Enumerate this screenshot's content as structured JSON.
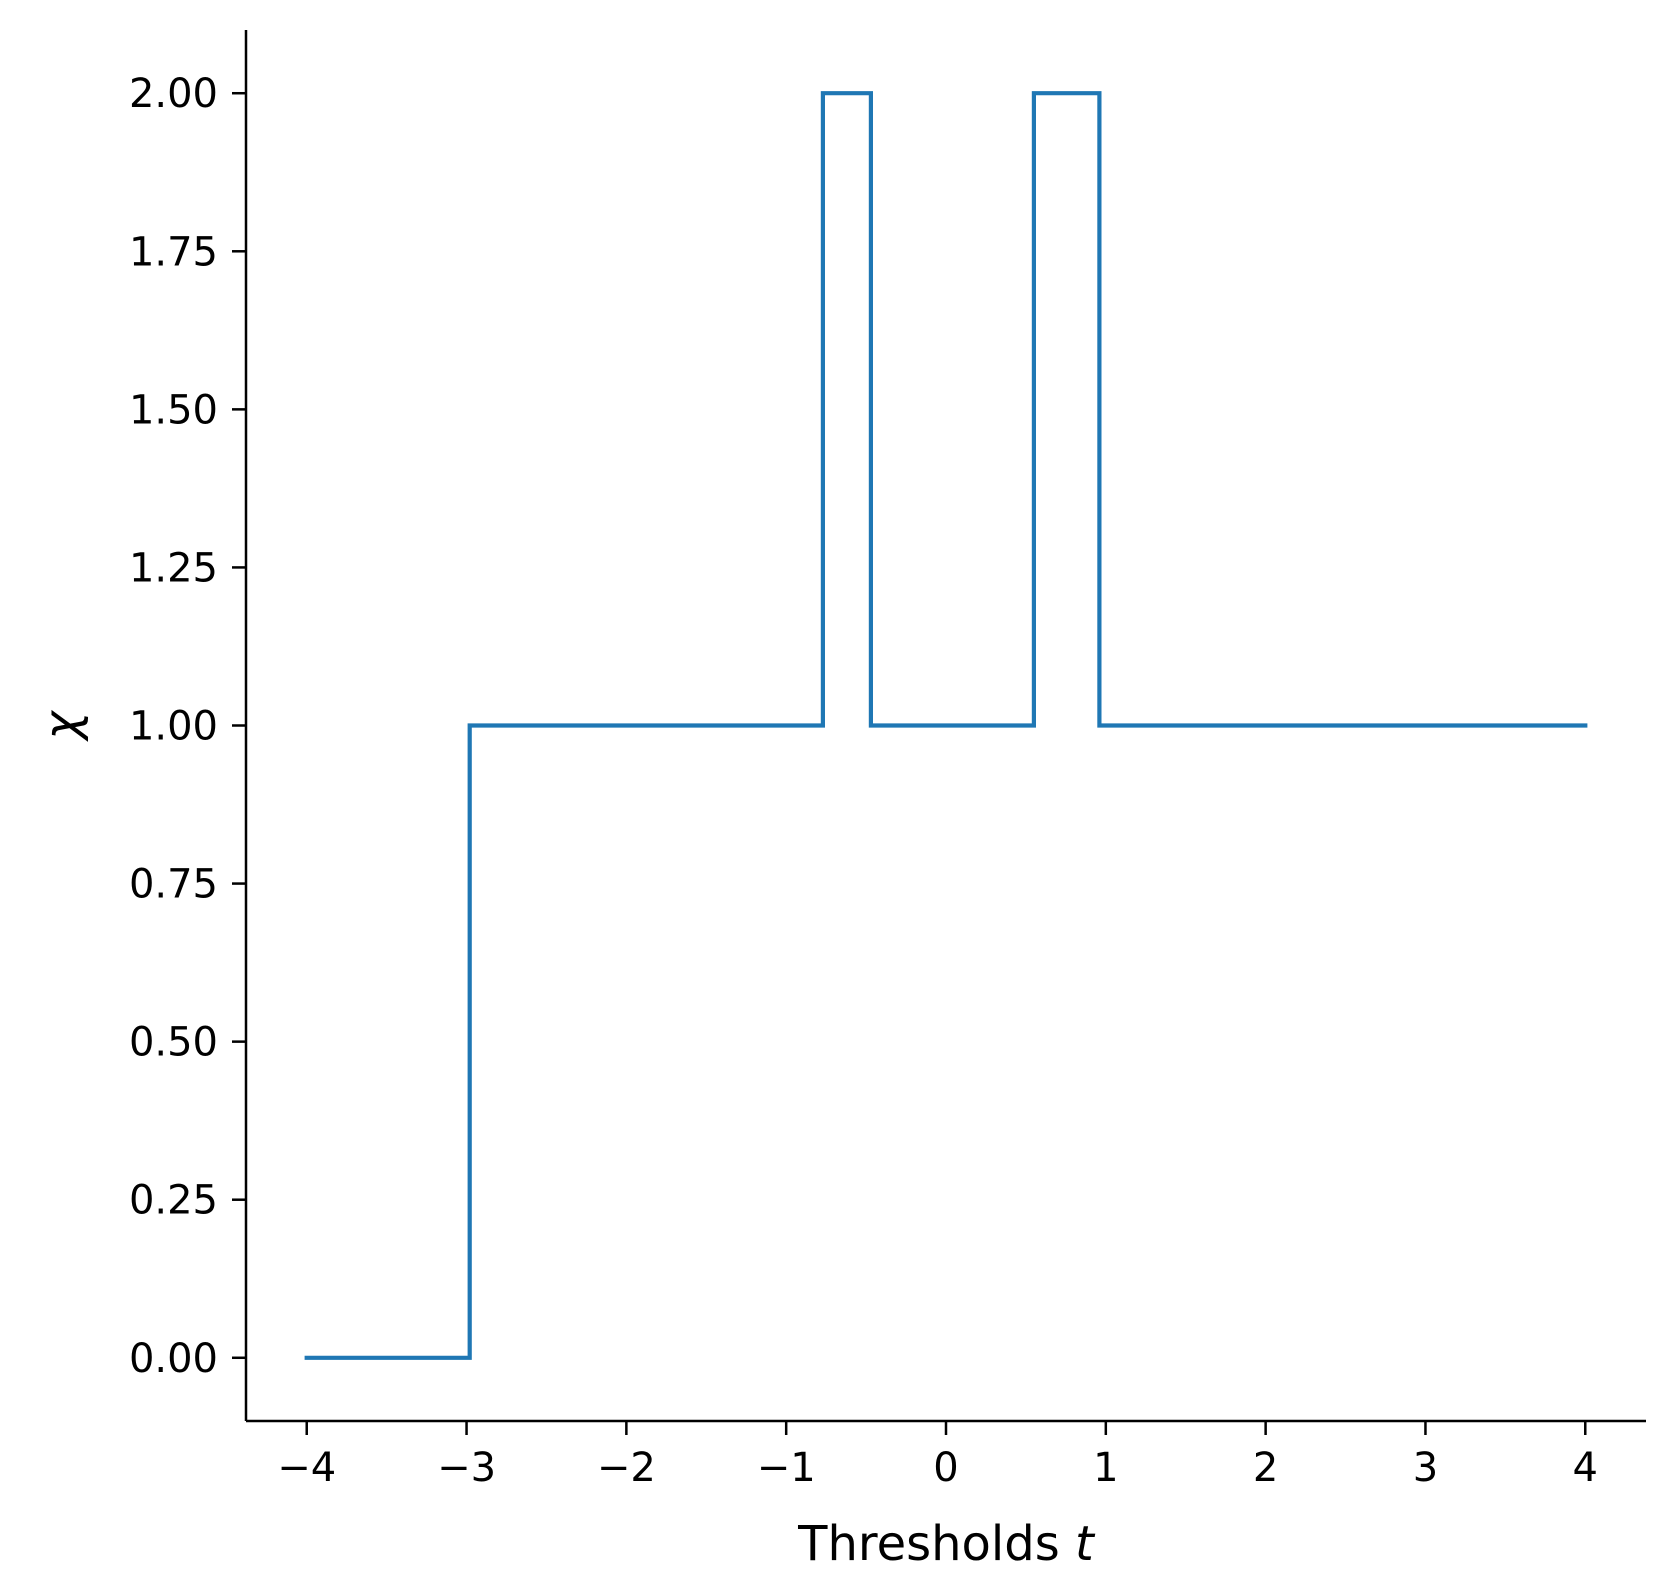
{
  "chart_data": {
    "type": "line",
    "step": true,
    "xlabel": "Thresholds",
    "xlabel_var": "t",
    "ylabel": "χ",
    "xlim": [
      -4.38,
      4.38
    ],
    "ylim": [
      -0.1,
      2.1
    ],
    "xticks": [
      -4,
      -3,
      -2,
      -1,
      0,
      1,
      2,
      3,
      4
    ],
    "xtick_labels": [
      "−4",
      "−3",
      "−2",
      "−1",
      "0",
      "1",
      "2",
      "3",
      "4"
    ],
    "yticks": [
      0,
      0.25,
      0.5,
      0.75,
      1.0,
      1.25,
      1.5,
      1.75,
      2.0
    ],
    "ytick_labels": [
      "0.00",
      "0.25",
      "0.50",
      "0.75",
      "1.00",
      "1.25",
      "1.50",
      "1.75",
      "2.00"
    ],
    "grid": false,
    "spines": [
      "left",
      "bottom"
    ],
    "series": [
      {
        "color": "#1f77b4",
        "x": [
          -4,
          -2.98,
          -2.98,
          -0.77,
          -0.77,
          -0.47,
          -0.47,
          0.55,
          0.55,
          0.96,
          0.96,
          4
        ],
        "y": [
          0,
          0,
          1,
          1,
          2,
          2,
          1,
          1,
          2,
          2,
          1,
          1
        ]
      }
    ]
  }
}
